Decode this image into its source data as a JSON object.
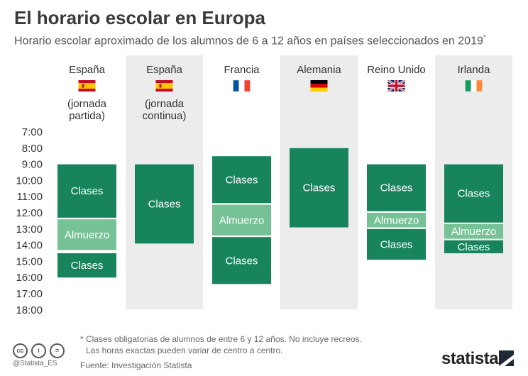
{
  "header": {
    "title": "El horario escolar en Europa",
    "subtitle": "Horario escolar aproximado de los alumnos de 6 a 12 años en países seleccionados en 2019",
    "subtitle_mark": "*"
  },
  "chart_data": {
    "type": "bar",
    "orientation": "vertical-timetable",
    "y_ticks": [
      "7:00",
      "8:00",
      "9:00",
      "10:00",
      "11:00",
      "12:00",
      "13:00",
      "14:00",
      "15:00",
      "16:00",
      "17:00",
      "18:00"
    ],
    "y_range": [
      7,
      18
    ],
    "y_unit": "hora",
    "columns": [
      {
        "country": "España",
        "note_lines": [
          "(jornada",
          "partida)"
        ],
        "flag": "spain-flag",
        "shaded": false,
        "blocks": [
          {
            "label": "Clases",
            "start": 9.0,
            "end": 12.3,
            "kind": "clases"
          },
          {
            "label": "Almuerzo",
            "start": 12.4,
            "end": 14.3,
            "kind": "almuerzo"
          },
          {
            "label": "Clases",
            "start": 14.5,
            "end": 16.0,
            "kind": "clases"
          }
        ]
      },
      {
        "country": "España",
        "note_lines": [
          "(jornada",
          "continua)"
        ],
        "flag": "spain-flag",
        "shaded": true,
        "blocks": [
          {
            "label": "Clases",
            "start": 9.0,
            "end": 13.9,
            "kind": "clases"
          }
        ]
      },
      {
        "country": "Francia",
        "note_lines": [],
        "flag": "france-flag",
        "shaded": false,
        "blocks": [
          {
            "label": "Clases",
            "start": 8.5,
            "end": 11.4,
            "kind": "clases"
          },
          {
            "label": "Almuerzo",
            "start": 11.5,
            "end": 13.4,
            "kind": "almuerzo"
          },
          {
            "label": "Clases",
            "start": 13.5,
            "end": 16.4,
            "kind": "clases"
          }
        ]
      },
      {
        "country": "Alemania",
        "note_lines": [],
        "flag": "germany-flag",
        "shaded": true,
        "blocks": [
          {
            "label": "Clases",
            "start": 8.0,
            "end": 12.9,
            "kind": "clases"
          }
        ]
      },
      {
        "country": "Reino Unido",
        "note_lines": [],
        "flag": "uk-flag",
        "shaded": false,
        "blocks": [
          {
            "label": "Clases",
            "start": 9.0,
            "end": 11.9,
            "kind": "clases"
          },
          {
            "label": "Almuerzo",
            "start": 12.0,
            "end": 12.9,
            "kind": "almuerzo"
          },
          {
            "label": "Clases",
            "start": 13.0,
            "end": 14.9,
            "kind": "clases"
          }
        ]
      },
      {
        "country": "Irlanda",
        "note_lines": [],
        "flag": "ireland-flag",
        "shaded": true,
        "blocks": [
          {
            "label": "Clases",
            "start": 9.0,
            "end": 12.6,
            "kind": "clases"
          },
          {
            "label": "Almuerzo",
            "start": 12.7,
            "end": 13.6,
            "kind": "almuerzo"
          },
          {
            "label": "Clases",
            "start": 13.7,
            "end": 14.5,
            "kind": "clases"
          }
        ]
      }
    ],
    "colors": {
      "clases": "#17845c",
      "almuerzo": "#77c196",
      "shade": "#ececec",
      "clases_text": "#ffffff",
      "almuerzo_text": "#ffffff"
    }
  },
  "footer": {
    "note_line1": "* Clases obligatorias de alumnos de entre 6 y 12 años. No incluye recreos.",
    "note_line2": "Las horas exactas pueden variar de centro a centro.",
    "source": "Fuente: Investigación Statista",
    "handle": "@Statista_ES",
    "brand": "statista",
    "cc_icons": [
      "cc",
      "i",
      "="
    ]
  }
}
